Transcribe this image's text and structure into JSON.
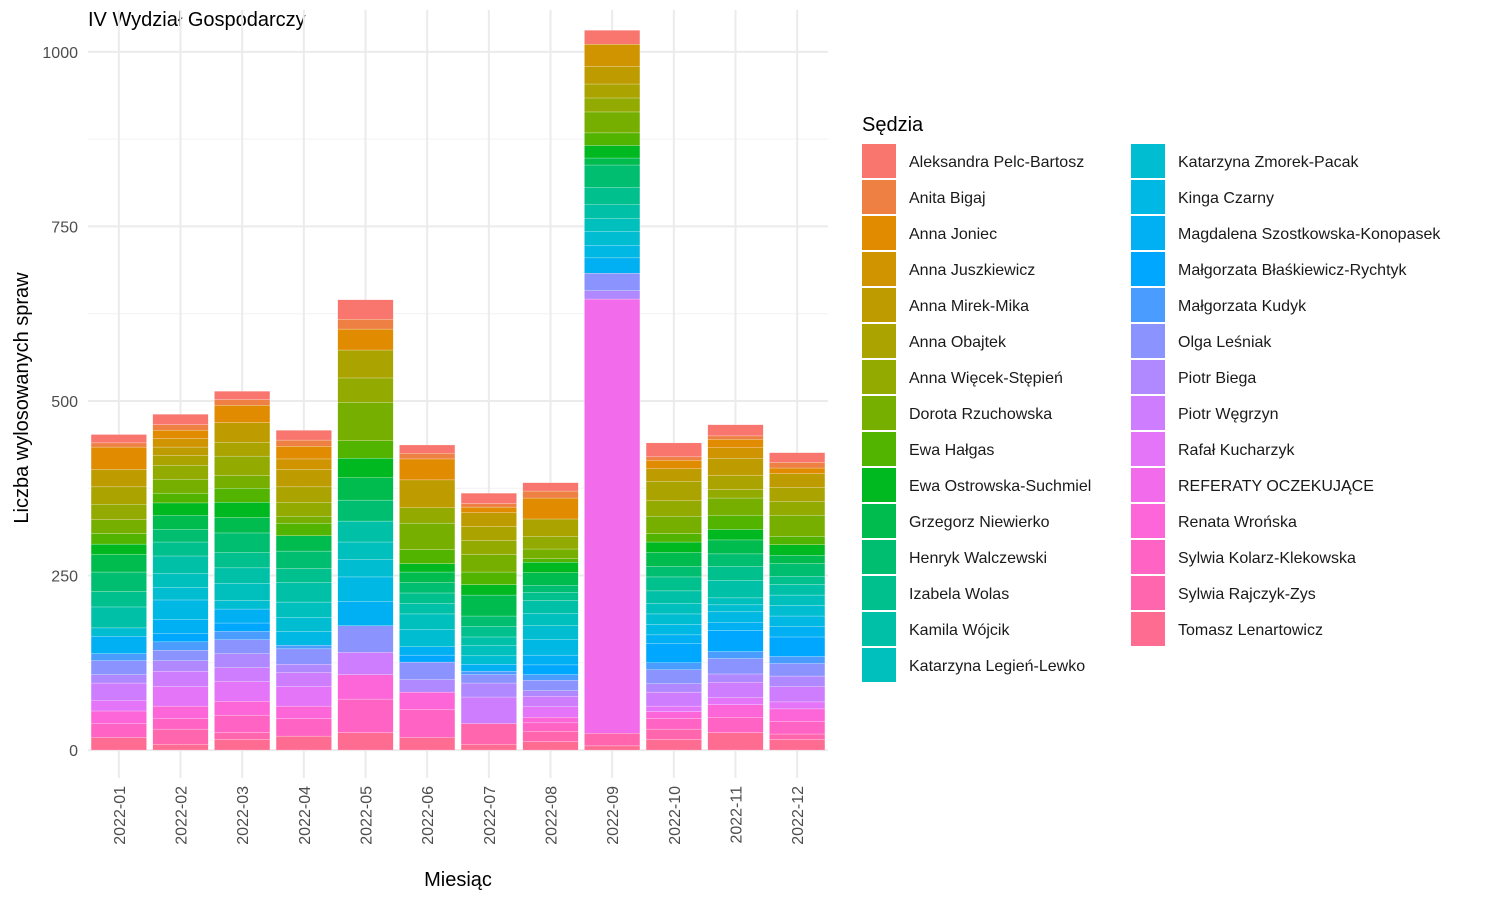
{
  "chart_data": {
    "type": "bar",
    "stacked": true,
    "title": "IV Wydział Gospodarczy",
    "xlabel": "Miesiąc",
    "ylabel": "Liczba wylosowanych spraw",
    "ylim": [
      -40,
      1060
    ],
    "yticks": [
      0,
      250,
      500,
      750,
      1000
    ],
    "grid": true,
    "legend_title": "Sędzia",
    "legend_position": "right",
    "categories": [
      "2022-01",
      "2022-02",
      "2022-03",
      "2022-04",
      "2022-05",
      "2022-06",
      "2022-07",
      "2022-08",
      "2022-09",
      "2022-10",
      "2022-11",
      "2022-12"
    ],
    "series": [
      {
        "name": "Aleksandra Pelc-Bartosz",
        "color": "#F8766D",
        "values": [
          12,
          15,
          12,
          14,
          28,
          12,
          15,
          12,
          20,
          20,
          16,
          14
        ]
      },
      {
        "name": "Anita Bigaj",
        "color": "#EE8043",
        "values": [
          6,
          8,
          8,
          9,
          14,
          8,
          5,
          10,
          0,
          5,
          5,
          8
        ]
      },
      {
        "name": "Anna Joniec",
        "color": "#E08B00",
        "values": [
          32,
          12,
          25,
          18,
          30,
          30,
          8,
          30,
          0,
          12,
          12,
          8
        ]
      },
      {
        "name": "Anna Juszkiewicz",
        "color": "#D09400",
        "values": [
          0,
          12,
          0,
          15,
          0,
          0,
          0,
          0,
          32,
          0,
          15,
          0
        ]
      },
      {
        "name": "Anna Mirek-Mika",
        "color": "#BE9C00",
        "values": [
          25,
          12,
          28,
          25,
          0,
          40,
          20,
          0,
          25,
          18,
          25,
          20
        ]
      },
      {
        "name": "Anna Obajtek",
        "color": "#AAA300",
        "values": [
          25,
          14,
          20,
          22,
          40,
          0,
          20,
          25,
          20,
          28,
          20,
          20
        ]
      },
      {
        "name": "Anna Więcek-Stępień",
        "color": "#93AA00",
        "values": [
          22,
          20,
          28,
          20,
          35,
          22,
          20,
          18,
          20,
          22,
          12,
          20
        ]
      },
      {
        "name": "Dorota Rzuchowska",
        "color": "#77AF00",
        "values": [
          20,
          20,
          18,
          10,
          55,
          38,
          25,
          14,
          30,
          25,
          25,
          30
        ]
      },
      {
        "name": "Ewa Hałgas",
        "color": "#53B400",
        "values": [
          15,
          14,
          20,
          18,
          25,
          20,
          18,
          5,
          18,
          12,
          20,
          12
        ]
      },
      {
        "name": "Ewa Ostrowska-Suchmiel",
        "color": "#00B81F",
        "values": [
          15,
          18,
          22,
          0,
          28,
          12,
          15,
          15,
          18,
          15,
          15,
          15
        ]
      },
      {
        "name": "Grzegorz Niewierko",
        "color": "#00BB4E",
        "values": [
          25,
          20,
          22,
          22,
          32,
          15,
          30,
          18,
          10,
          20,
          20,
          12
        ]
      },
      {
        "name": "Henryk Walczewski",
        "color": "#00BE70",
        "values": [
          28,
          18,
          28,
          25,
          30,
          15,
          15,
          10,
          32,
          15,
          18,
          18
        ]
      },
      {
        "name": "Izabela Wolas",
        "color": "#00C08D",
        "values": [
          22,
          20,
          22,
          20,
          0,
          15,
          15,
          12,
          25,
          20,
          20,
          12
        ]
      },
      {
        "name": "Kamila Wójcik",
        "color": "#00C1A7",
        "values": [
          30,
          25,
          22,
          28,
          30,
          15,
          12,
          18,
          20,
          18,
          25,
          15
        ]
      },
      {
        "name": "Katarzyna Legień-Lewko",
        "color": "#00C0BE",
        "values": [
          0,
          20,
          25,
          22,
          25,
          22,
          15,
          18,
          18,
          15,
          10,
          15
        ]
      },
      {
        "name": "Katarzyna Zmorek-Pacak",
        "color": "#00BDD2",
        "values": [
          12,
          18,
          12,
          20,
          25,
          25,
          12,
          20,
          20,
          15,
          10,
          15
        ]
      },
      {
        "name": "Kinga Czarny",
        "color": "#00B8E4",
        "values": [
          0,
          28,
          0,
          20,
          35,
          0,
          0,
          22,
          18,
          15,
          15,
          15
        ]
      },
      {
        "name": "Magdalena Szostkowska-Konopasek",
        "color": "#00B0F3",
        "values": [
          25,
          20,
          20,
          0,
          35,
          12,
          10,
          14,
          22,
          12,
          12,
          15
        ]
      },
      {
        "name": "Małgorzata Błaśkiewicz-Rychtyk",
        "color": "#00A7FF",
        "values": [
          0,
          12,
          12,
          0,
          0,
          10,
          0,
          14,
          0,
          28,
          30,
          28
        ]
      },
      {
        "name": "Małgorzata Kudyk",
        "color": "#4A9DFF",
        "values": [
          10,
          12,
          12,
          5,
          0,
          0,
          5,
          8,
          0,
          10,
          10,
          10
        ]
      },
      {
        "name": "Olga Leśniak",
        "color": "#8B93FF",
        "values": [
          20,
          15,
          20,
          22,
          38,
          25,
          12,
          15,
          25,
          20,
          22,
          18
        ]
      },
      {
        "name": "Piotr Biega",
        "color": "#B088FF",
        "values": [
          12,
          15,
          20,
          12,
          0,
          18,
          20,
          8,
          12,
          12,
          12,
          15
        ]
      },
      {
        "name": "Piotr Węgrzyn",
        "color": "#CE7DFF",
        "values": [
          25,
          22,
          20,
          20,
          32,
          0,
          38,
          15,
          0,
          20,
          22,
          22
        ]
      },
      {
        "name": "Rafał Kucharzyk",
        "color": "#E474F8",
        "values": [
          15,
          28,
          28,
          28,
          0,
          0,
          0,
          15,
          0,
          8,
          10,
          10
        ]
      },
      {
        "name": "REFERATY OCZEKUJĄCE",
        "color": "#F26BEA",
        "values": [
          0,
          0,
          0,
          0,
          0,
          0,
          0,
          0,
          622,
          0,
          0,
          0
        ]
      },
      {
        "name": "Renata Wrońska",
        "color": "#FC66D9",
        "values": [
          18,
          18,
          20,
          18,
          35,
          25,
          0,
          8,
          0,
          10,
          18,
          18
        ]
      },
      {
        "name": "Sylwia Kolarz-Klekowska",
        "color": "#FF64C5",
        "values": [
          20,
          15,
          25,
          25,
          48,
          40,
          0,
          12,
          0,
          15,
          22,
          18
        ]
      },
      {
        "name": "Sylwia Rajczyk-Zys",
        "color": "#FF66AE",
        "values": [
          0,
          22,
          10,
          0,
          0,
          0,
          30,
          15,
          18,
          15,
          0,
          8
        ]
      },
      {
        "name": "Tomasz Lenartowicz",
        "color": "#FF6C92",
        "values": [
          18,
          8,
          15,
          20,
          25,
          18,
          8,
          12,
          6,
          15,
          25,
          15
        ]
      }
    ]
  }
}
